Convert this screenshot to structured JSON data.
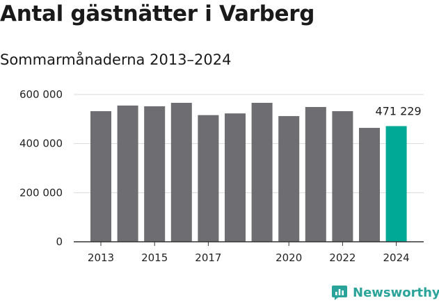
{
  "chart_data": {
    "type": "bar",
    "title": "Antal gästnätter i Varberg",
    "subtitle": "Sommarmånaderna 2013–2024",
    "categories": [
      "2013",
      "2014",
      "2015",
      "2016",
      "2017",
      "2018",
      "2019",
      "2020",
      "2021",
      "2022",
      "2023",
      "2024"
    ],
    "values": [
      532000,
      555000,
      552000,
      566000,
      516000,
      523000,
      566000,
      512000,
      549000,
      532000,
      464000,
      471229
    ],
    "x_tick_labels": [
      "2013",
      "2015",
      "2017",
      "2020",
      "2022",
      "2024"
    ],
    "y_ticks": [
      0,
      200000,
      400000,
      600000
    ],
    "y_tick_labels": [
      "0",
      "200 000",
      "400 000",
      "600 000"
    ],
    "ylim": [
      0,
      600000
    ],
    "grid": true,
    "highlight": {
      "category": "2024",
      "label": "471 229"
    },
    "colors": {
      "bar": "#6e6d72",
      "highlight": "#00a896",
      "grid": "#d9d9d9",
      "axis": "#333333"
    }
  },
  "brand": {
    "name": "Newsworthy",
    "color": "#2aa39a"
  }
}
